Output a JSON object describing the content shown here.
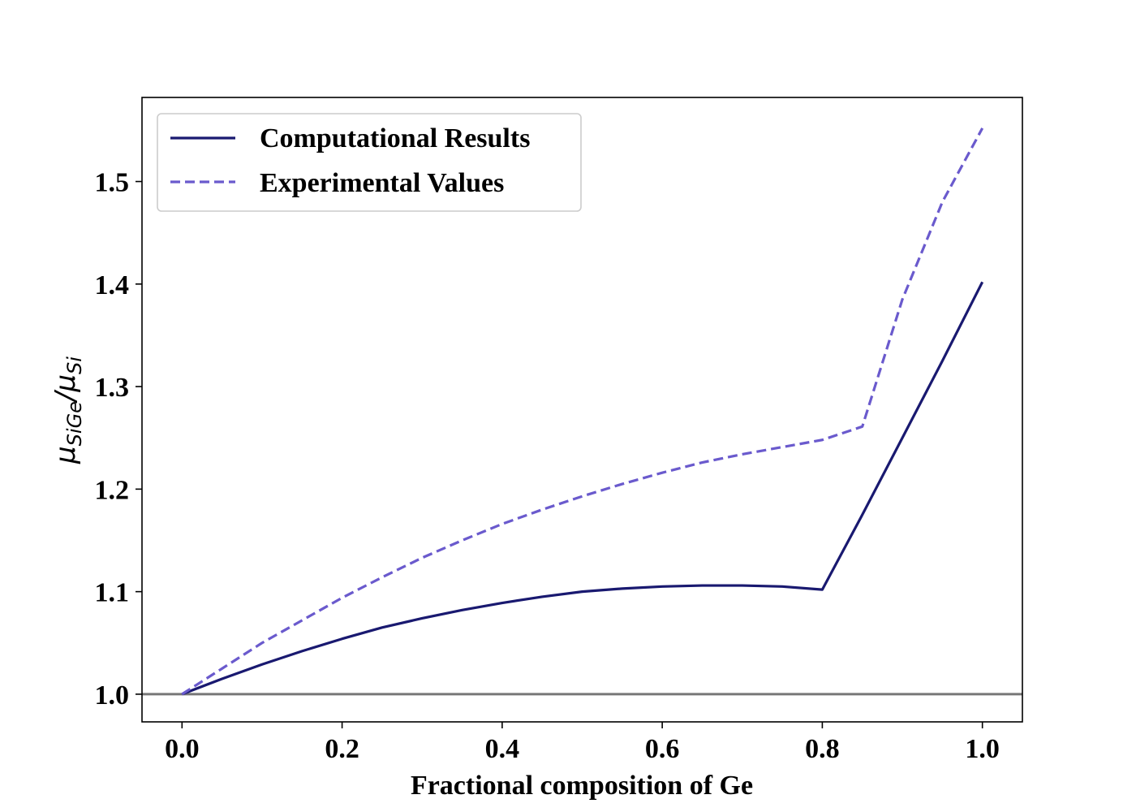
{
  "chart_data": {
    "type": "line",
    "title": "",
    "xlabel": "Fractional composition of Ge",
    "ylabel": {
      "numerator_symbol": "μ",
      "numerator_sub": "SiGe",
      "separator": "/",
      "denominator_symbol": "μ",
      "denominator_sub": "Si"
    },
    "xlim": [
      -0.05,
      1.05
    ],
    "ylim": [
      0.973,
      1.582
    ],
    "x_ticks": [
      0.0,
      0.2,
      0.4,
      0.6,
      0.8,
      1.0
    ],
    "x_tick_labels": [
      "0.0",
      "0.2",
      "0.4",
      "0.6",
      "0.8",
      "1.0"
    ],
    "y_ticks": [
      1.0,
      1.1,
      1.2,
      1.3,
      1.4,
      1.5
    ],
    "y_tick_labels": [
      "1.0",
      "1.1",
      "1.2",
      "1.3",
      "1.4",
      "1.5"
    ],
    "grid": false,
    "legend_position": "top-left",
    "reference_line": {
      "y": 1.0,
      "color": "#777777"
    },
    "series": [
      {
        "name": "Computational Results",
        "style": "solid",
        "color": "#191970",
        "x": [
          0.0,
          0.05,
          0.1,
          0.15,
          0.2,
          0.25,
          0.3,
          0.35,
          0.4,
          0.45,
          0.5,
          0.55,
          0.6,
          0.65,
          0.7,
          0.75,
          0.8,
          0.85,
          0.9,
          0.95,
          1.0
        ],
        "values": [
          1.0,
          1.015,
          1.029,
          1.042,
          1.054,
          1.065,
          1.074,
          1.082,
          1.089,
          1.095,
          1.1,
          1.103,
          1.105,
          1.106,
          1.106,
          1.105,
          1.102,
          1.175,
          1.25,
          1.325,
          1.402
        ]
      },
      {
        "name": "Experimental Values",
        "style": "dashed",
        "color": "#6A5ACD",
        "x": [
          0.0,
          0.05,
          0.1,
          0.15,
          0.2,
          0.25,
          0.3,
          0.35,
          0.4,
          0.45,
          0.5,
          0.55,
          0.6,
          0.65,
          0.7,
          0.75,
          0.8,
          0.85,
          0.9,
          0.95,
          1.0
        ],
        "values": [
          1.0,
          1.025,
          1.05,
          1.072,
          1.094,
          1.114,
          1.133,
          1.15,
          1.166,
          1.18,
          1.193,
          1.205,
          1.216,
          1.226,
          1.234,
          1.241,
          1.248,
          1.261,
          1.385,
          1.48,
          1.552
        ]
      }
    ]
  }
}
